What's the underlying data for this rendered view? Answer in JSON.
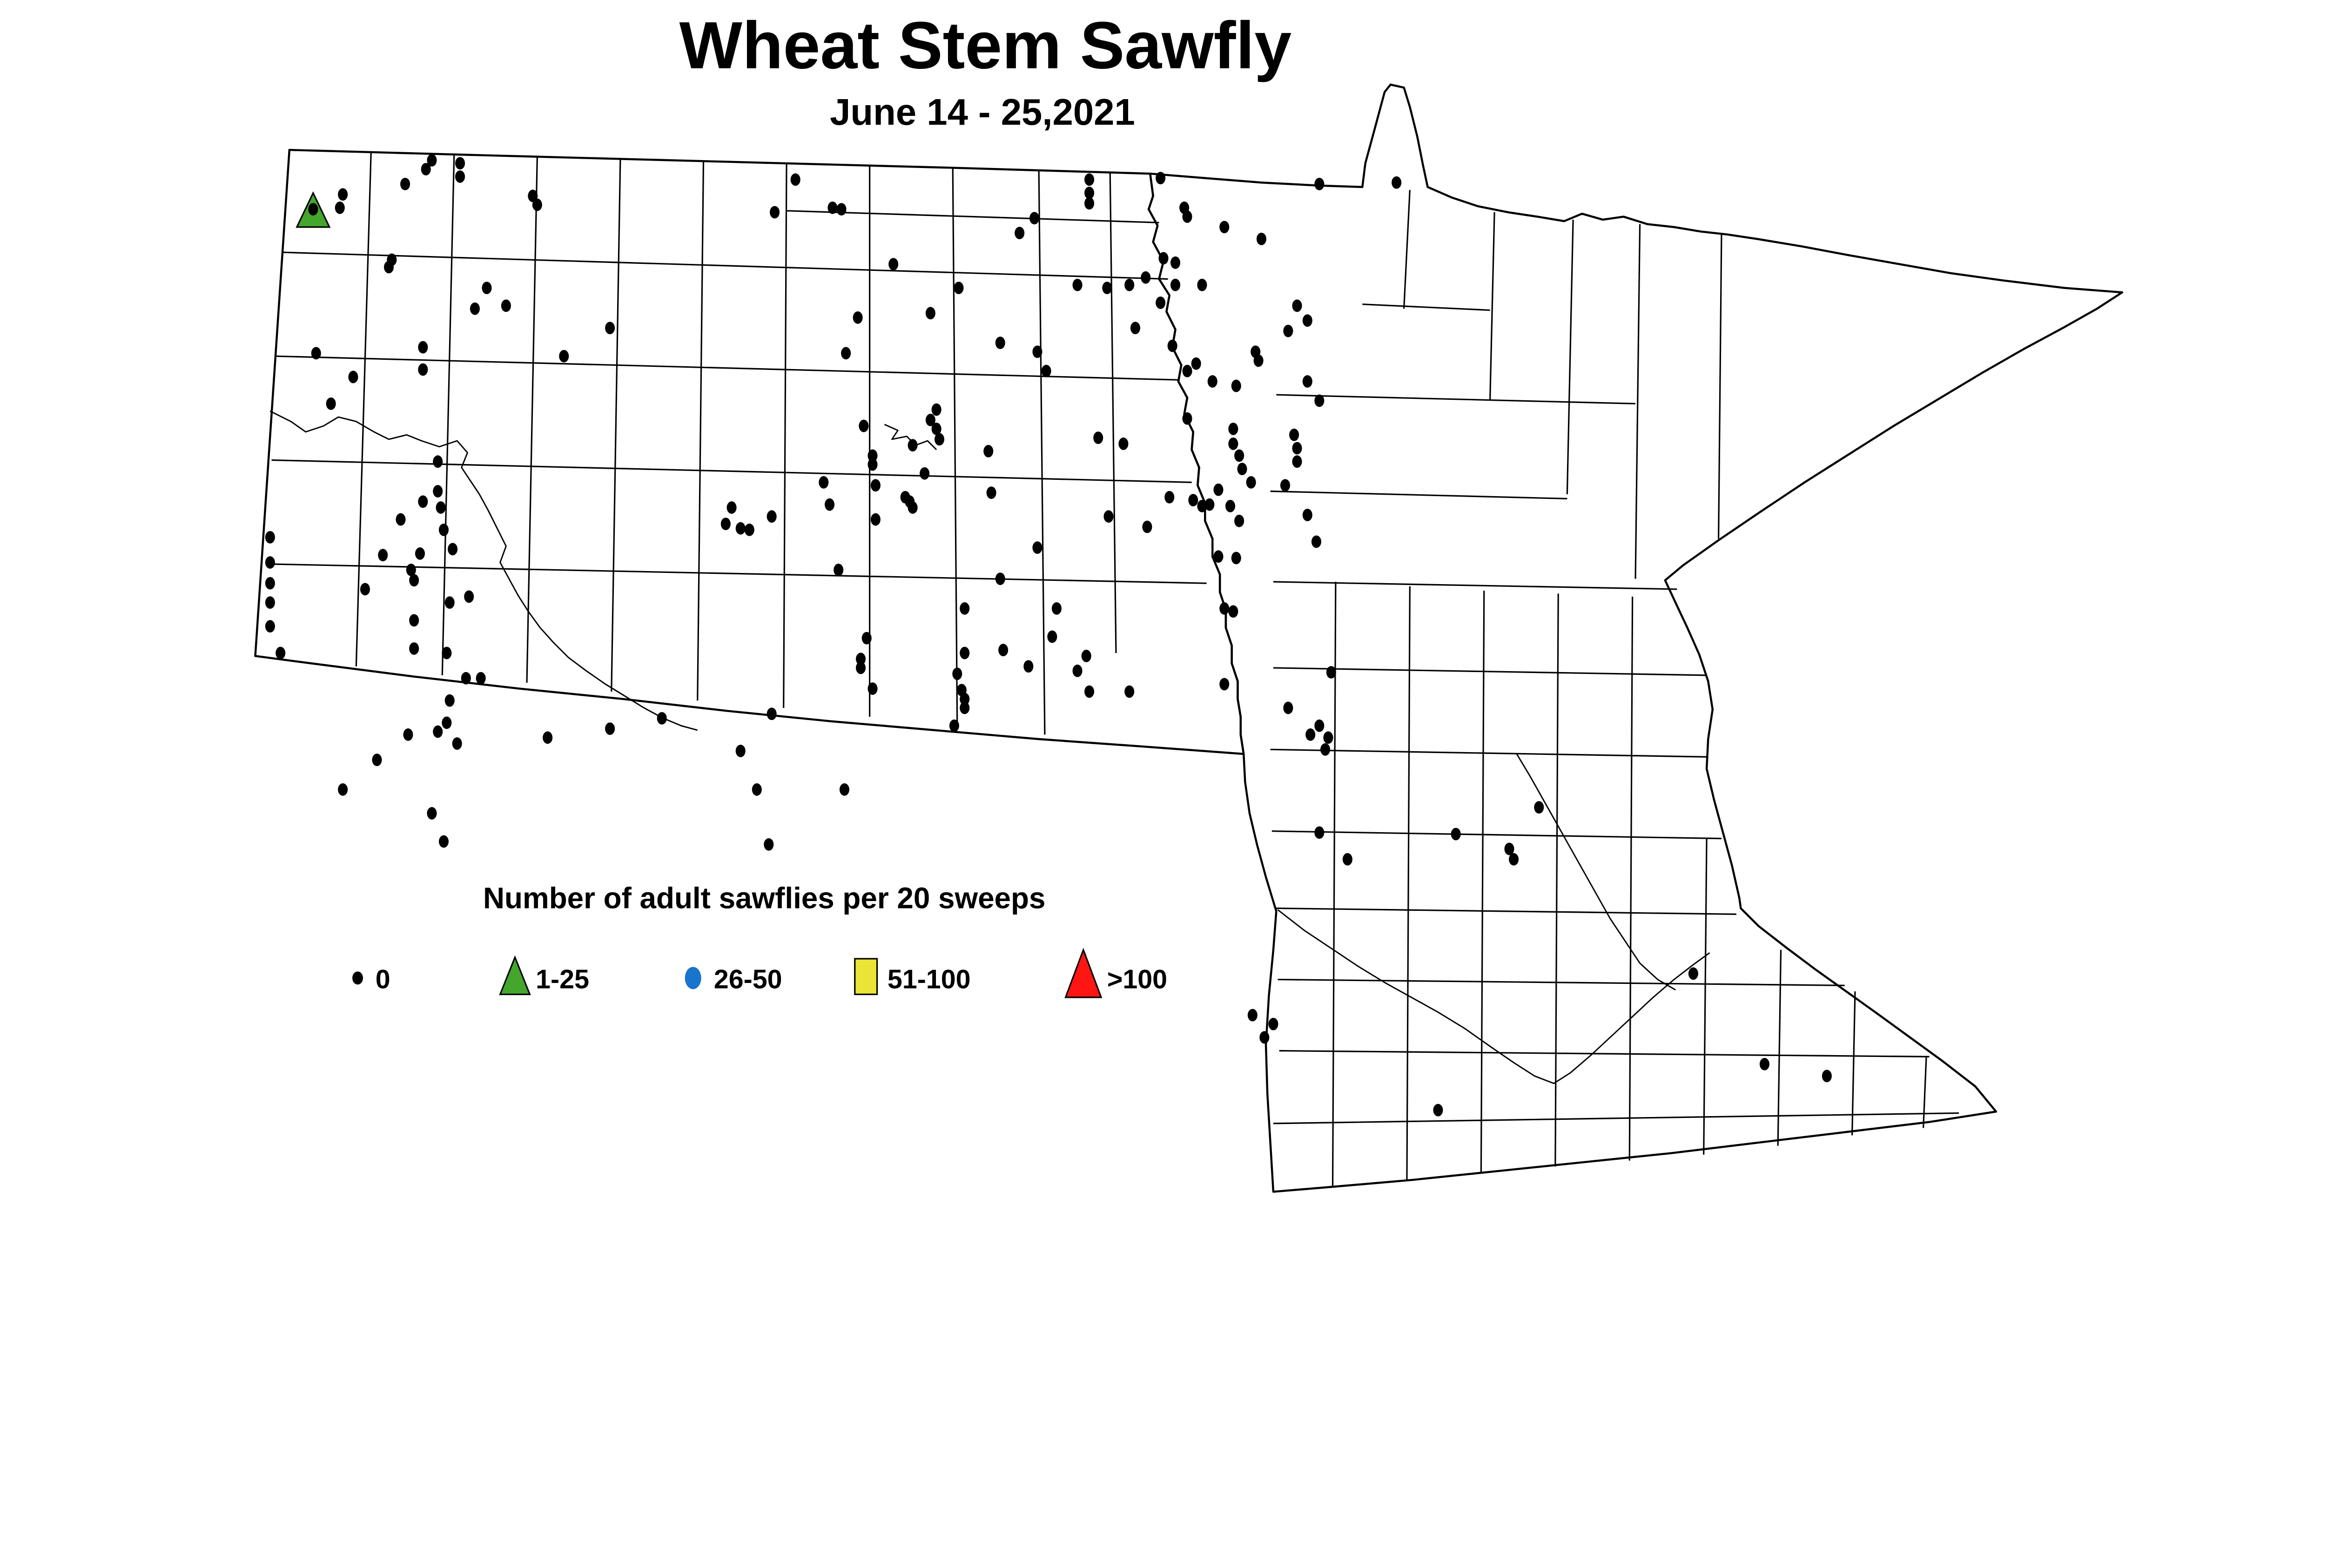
{
  "title": "Wheat Stem Sawfly",
  "subtitle": "June 14 - 25,2021",
  "legend": {
    "title": "Number of adult sawflies per 20 sweeps",
    "items": [
      {
        "label": "0",
        "shape": "small-black-dot",
        "color": "#000000"
      },
      {
        "label": "1-25",
        "shape": "green-triangle",
        "color": "#44A62C"
      },
      {
        "label": "26-50",
        "shape": "blue-circle",
        "color": "#1874CD"
      },
      {
        "label": "51-100",
        "shape": "yellow-square",
        "color": "#E9E436"
      },
      {
        "label": ">100",
        "shape": "red-triangle",
        "color": "#FF1612"
      }
    ]
  },
  "map": {
    "region": "North Dakota and Minnesota counties",
    "background": "#FFFFFF",
    "line_color": "#000000",
    "dot": {
      "rx": 3.3,
      "ry": 4.2,
      "color": "#000000"
    },
    "zero_points": [
      [
        291,
        108
      ],
      [
        287,
        114
      ],
      [
        310,
        110
      ],
      [
        310,
        119
      ],
      [
        273,
        124
      ],
      [
        231,
        131
      ],
      [
        229,
        140
      ],
      [
        211,
        141
      ],
      [
        359,
        132
      ],
      [
        362,
        138
      ],
      [
        536,
        121
      ],
      [
        522,
        143
      ],
      [
        561,
        140
      ],
      [
        567,
        141
      ],
      [
        264,
        175
      ],
      [
        262,
        180
      ],
      [
        328,
        194
      ],
      [
        320,
        208
      ],
      [
        341,
        206
      ],
      [
        411,
        221
      ],
      [
        213,
        238
      ],
      [
        285,
        234
      ],
      [
        285,
        249
      ],
      [
        380,
        240
      ],
      [
        238,
        254
      ],
      [
        223,
        272
      ],
      [
        295,
        311
      ],
      [
        295,
        331
      ],
      [
        285,
        338
      ],
      [
        570,
        238
      ],
      [
        555,
        325
      ],
      [
        734,
        121
      ],
      [
        734,
        130
      ],
      [
        734,
        137
      ],
      [
        782,
        120
      ],
      [
        798,
        140
      ],
      [
        800,
        146
      ],
      [
        825,
        153
      ],
      [
        850,
        161
      ],
      [
        889,
        124
      ],
      [
        941,
        123
      ],
      [
        697,
        147
      ],
      [
        687,
        157
      ],
      [
        602,
        178
      ],
      [
        646,
        194
      ],
      [
        627,
        211
      ],
      [
        578,
        214
      ],
      [
        784,
        174
      ],
      [
        792,
        177
      ],
      [
        772,
        187
      ],
      [
        726,
        192
      ],
      [
        746,
        194
      ],
      [
        761,
        192
      ],
      [
        792,
        192
      ],
      [
        810,
        192
      ],
      [
        782,
        204
      ],
      [
        874,
        206
      ],
      [
        881,
        216
      ],
      [
        868,
        223
      ],
      [
        765,
        221
      ],
      [
        674,
        231
      ],
      [
        699,
        237
      ],
      [
        705,
        250
      ],
      [
        790,
        233
      ],
      [
        846,
        237
      ],
      [
        848,
        243
      ],
      [
        806,
        245
      ],
      [
        800,
        250
      ],
      [
        817,
        257
      ],
      [
        833,
        260
      ],
      [
        881,
        257
      ],
      [
        631,
        276
      ],
      [
        627,
        283
      ],
      [
        631,
        289
      ],
      [
        633,
        296
      ],
      [
        582,
        287
      ],
      [
        615,
        300
      ],
      [
        588,
        307
      ],
      [
        588,
        313
      ],
      [
        623,
        319
      ],
      [
        590,
        327
      ],
      [
        610,
        335
      ],
      [
        613,
        338
      ],
      [
        666,
        304
      ],
      [
        668,
        332
      ],
      [
        740,
        295
      ],
      [
        757,
        299
      ],
      [
        800,
        282
      ],
      [
        831,
        289
      ],
      [
        831,
        299
      ],
      [
        835,
        307
      ],
      [
        837,
        316
      ],
      [
        843,
        325
      ],
      [
        821,
        330
      ],
      [
        872,
        293
      ],
      [
        874,
        302
      ],
      [
        874,
        311
      ],
      [
        866,
        327
      ],
      [
        788,
        335
      ],
      [
        889,
        270
      ],
      [
        182,
        362
      ],
      [
        182,
        379
      ],
      [
        182,
        393
      ],
      [
        182,
        406
      ],
      [
        182,
        422
      ],
      [
        189,
        440
      ],
      [
        270,
        350
      ],
      [
        297,
        342
      ],
      [
        299,
        357
      ],
      [
        258,
        374
      ],
      [
        283,
        373
      ],
      [
        277,
        384
      ],
      [
        279,
        391
      ],
      [
        305,
        370
      ],
      [
        246,
        397
      ],
      [
        303,
        406
      ],
      [
        316,
        402
      ],
      [
        279,
        418
      ],
      [
        279,
        437
      ],
      [
        301,
        440
      ],
      [
        314,
        457
      ],
      [
        324,
        457
      ],
      [
        303,
        472
      ],
      [
        301,
        487
      ],
      [
        295,
        493
      ],
      [
        275,
        495
      ],
      [
        308,
        501
      ],
      [
        254,
        512
      ],
      [
        231,
        532
      ],
      [
        291,
        548
      ],
      [
        299,
        567
      ],
      [
        369,
        497
      ],
      [
        411,
        491
      ],
      [
        446,
        484
      ],
      [
        520,
        481
      ],
      [
        499,
        506
      ],
      [
        510,
        532
      ],
      [
        569,
        532
      ],
      [
        518,
        569
      ],
      [
        493,
        342
      ],
      [
        489,
        353
      ],
      [
        499,
        356
      ],
      [
        505,
        357
      ],
      [
        520,
        348
      ],
      [
        559,
        340
      ],
      [
        565,
        384
      ],
      [
        590,
        350
      ],
      [
        615,
        342
      ],
      [
        747,
        348
      ],
      [
        773,
        355
      ],
      [
        699,
        369
      ],
      [
        804,
        337
      ],
      [
        810,
        341
      ],
      [
        815,
        340
      ],
      [
        829,
        341
      ],
      [
        835,
        351
      ],
      [
        881,
        347
      ],
      [
        887,
        365
      ],
      [
        821,
        375
      ],
      [
        833,
        376
      ],
      [
        674,
        390
      ],
      [
        650,
        410
      ],
      [
        712,
        410
      ],
      [
        825,
        410
      ],
      [
        831,
        412
      ],
      [
        584,
        430
      ],
      [
        709,
        429
      ],
      [
        650,
        440
      ],
      [
        676,
        438
      ],
      [
        580,
        444
      ],
      [
        580,
        450
      ],
      [
        693,
        449
      ],
      [
        732,
        442
      ],
      [
        726,
        452
      ],
      [
        645,
        454
      ],
      [
        588,
        464
      ],
      [
        648,
        465
      ],
      [
        650,
        471
      ],
      [
        650,
        477
      ],
      [
        734,
        466
      ],
      [
        761,
        466
      ],
      [
        825,
        461
      ],
      [
        897,
        453
      ],
      [
        868,
        477
      ],
      [
        643,
        489
      ],
      [
        883,
        495
      ],
      [
        895,
        497
      ],
      [
        889,
        489
      ],
      [
        893,
        505
      ],
      [
        889,
        561
      ],
      [
        1037,
        544
      ],
      [
        981,
        562
      ],
      [
        1017,
        572
      ],
      [
        1020,
        579
      ],
      [
        908,
        579
      ],
      [
        844,
        684
      ],
      [
        858,
        690
      ],
      [
        852,
        699
      ],
      [
        969,
        748
      ],
      [
        1141,
        656
      ],
      [
        1189,
        717
      ],
      [
        1231,
        725
      ]
    ],
    "points_1_25": [
      [
        211,
        144
      ]
    ]
  },
  "chart_data": {
    "type": "scatter",
    "title": "Wheat Stem Sawfly",
    "subtitle": "June 14 - 25,2021",
    "legend_title": "Number of adult sawflies per 20 sweeps",
    "classes": [
      "0",
      "1-25",
      "26-50",
      "51-100",
      ">100"
    ],
    "class_counts": [
      202,
      1,
      0,
      0,
      0
    ]
  }
}
